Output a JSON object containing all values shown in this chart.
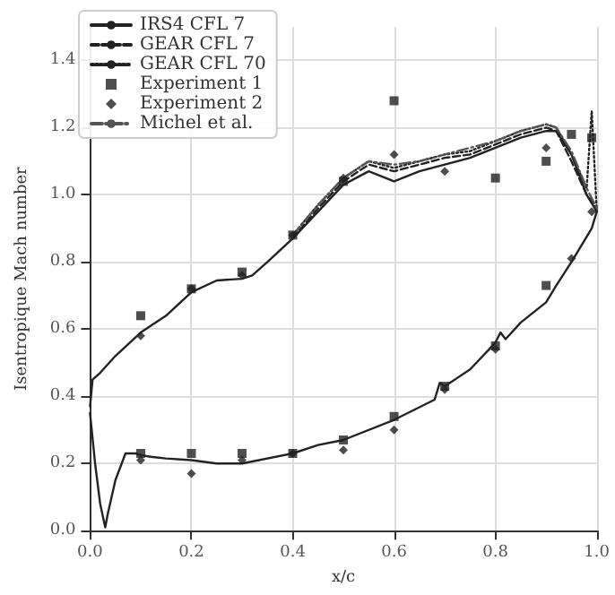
{
  "chart_data": {
    "type": "line",
    "xlabel": "x/c",
    "ylabel": "Isentropique Mach number",
    "xlim": [
      0,
      1
    ],
    "xticks": [
      {
        "value": 0,
        "label": "0.0"
      },
      0.2,
      0.4,
      0.6,
      0.8,
      {
        "value": 1,
        "label": "1.0"
      }
    ],
    "ylim": [
      0,
      1.5
    ],
    "yticks": [
      {
        "value": 0,
        "label": "0.0"
      },
      0.2,
      0.4,
      0.6,
      0.8,
      {
        "value": 1,
        "label": "1.0"
      },
      1.2,
      1.4
    ],
    "grid": true,
    "legend": "top left",
    "series": [
      {
        "name": "IRS4 CFL 7",
        "line_style": "solid",
        "marker": "none",
        "color": "#222222",
        "x": [
          0.0,
          0.005,
          0.02,
          0.05,
          0.1,
          0.12,
          0.15,
          0.2,
          0.25,
          0.3,
          0.32,
          0.35,
          0.4,
          0.45,
          0.5,
          0.55,
          0.6,
          0.65,
          0.7,
          0.75,
          0.8,
          0.85,
          0.9,
          0.92,
          0.95,
          0.98,
          1.0,
          0.99,
          0.97,
          0.95,
          0.92,
          0.9,
          0.85,
          0.82,
          0.81,
          0.8,
          0.75,
          0.7,
          0.69,
          0.68,
          0.6,
          0.5,
          0.45,
          0.4,
          0.3,
          0.25,
          0.2,
          0.15,
          0.12,
          0.1,
          0.09,
          0.07,
          0.05,
          0.035,
          0.03,
          0.02,
          0.01,
          0.0
        ],
        "values": [
          0.37,
          0.45,
          0.47,
          0.52,
          0.59,
          0.61,
          0.64,
          0.71,
          0.745,
          0.75,
          0.76,
          0.8,
          0.87,
          0.95,
          1.03,
          1.07,
          1.04,
          1.07,
          1.09,
          1.11,
          1.14,
          1.17,
          1.19,
          1.19,
          1.12,
          1.0,
          0.95,
          0.9,
          0.85,
          0.8,
          0.73,
          0.68,
          0.62,
          0.57,
          0.59,
          0.56,
          0.48,
          0.43,
          0.44,
          0.39,
          0.33,
          0.27,
          0.255,
          0.23,
          0.2,
          0.2,
          0.21,
          0.215,
          0.22,
          0.225,
          0.23,
          0.23,
          0.15,
          0.05,
          0.01,
          0.08,
          0.2,
          0.35
        ]
      },
      {
        "name": "GEAR CFL 7",
        "line_style": "dashed",
        "marker": "none",
        "color": "#222222",
        "x": [
          0.4,
          0.45,
          0.5,
          0.55,
          0.6,
          0.65,
          0.7,
          0.75,
          0.8,
          0.85,
          0.9,
          0.92,
          0.95,
          0.98,
          1.0
        ],
        "values": [
          0.87,
          0.96,
          1.04,
          1.09,
          1.07,
          1.09,
          1.11,
          1.12,
          1.15,
          1.18,
          1.2,
          1.19,
          1.1,
          1.0,
          0.96
        ]
      },
      {
        "name": "GEAR CFL 70",
        "line_style": "dotted",
        "marker": "none",
        "color": "#222222",
        "x": [
          0.4,
          0.45,
          0.5,
          0.55,
          0.6,
          0.65,
          0.7,
          0.75,
          0.8,
          0.85,
          0.9,
          0.92,
          0.95,
          0.98,
          0.99,
          1.0
        ],
        "values": [
          0.88,
          0.97,
          1.05,
          1.1,
          1.08,
          1.1,
          1.12,
          1.13,
          1.16,
          1.19,
          1.21,
          1.2,
          1.12,
          1.02,
          1.25,
          0.95
        ]
      },
      {
        "name": "Experiment 1",
        "type": "scatter",
        "marker": "square",
        "color": "#222222",
        "x": [
          0.1,
          0.2,
          0.3,
          0.4,
          0.5,
          0.6,
          0.8,
          0.9,
          0.95,
          0.99,
          0.1,
          0.2,
          0.3,
          0.4,
          0.5,
          0.6,
          0.7,
          0.8,
          0.9
        ],
        "values": [
          0.64,
          0.72,
          0.77,
          0.88,
          1.04,
          1.28,
          1.05,
          1.1,
          1.18,
          1.17,
          0.23,
          0.23,
          0.23,
          0.23,
          0.27,
          0.34,
          0.43,
          0.55,
          0.73
        ]
      },
      {
        "name": "Experiment 2",
        "type": "scatter",
        "marker": "diamond",
        "color": "#222222",
        "x": [
          0.1,
          0.2,
          0.3,
          0.4,
          0.5,
          0.6,
          0.7,
          0.9,
          0.99,
          0.1,
          0.2,
          0.3,
          0.4,
          0.5,
          0.6,
          0.7,
          0.8,
          0.95
        ],
        "values": [
          0.58,
          0.72,
          0.76,
          0.88,
          1.05,
          1.12,
          1.07,
          1.14,
          0.95,
          0.21,
          0.17,
          0.21,
          0.23,
          0.24,
          0.3,
          0.42,
          0.54,
          0.81
        ]
      },
      {
        "name": "Michel et al.",
        "line_style": "dashdot",
        "marker": "none",
        "color": "#555555",
        "x": [
          0.4,
          0.45,
          0.5,
          0.55,
          0.6,
          0.65,
          0.7,
          0.75,
          0.8,
          0.85,
          0.9,
          0.92,
          0.95,
          0.98,
          1.0
        ],
        "values": [
          0.88,
          0.97,
          1.05,
          1.1,
          1.09,
          1.1,
          1.12,
          1.14,
          1.16,
          1.19,
          1.21,
          1.2,
          1.13,
          1.02,
          0.96
        ]
      }
    ]
  }
}
